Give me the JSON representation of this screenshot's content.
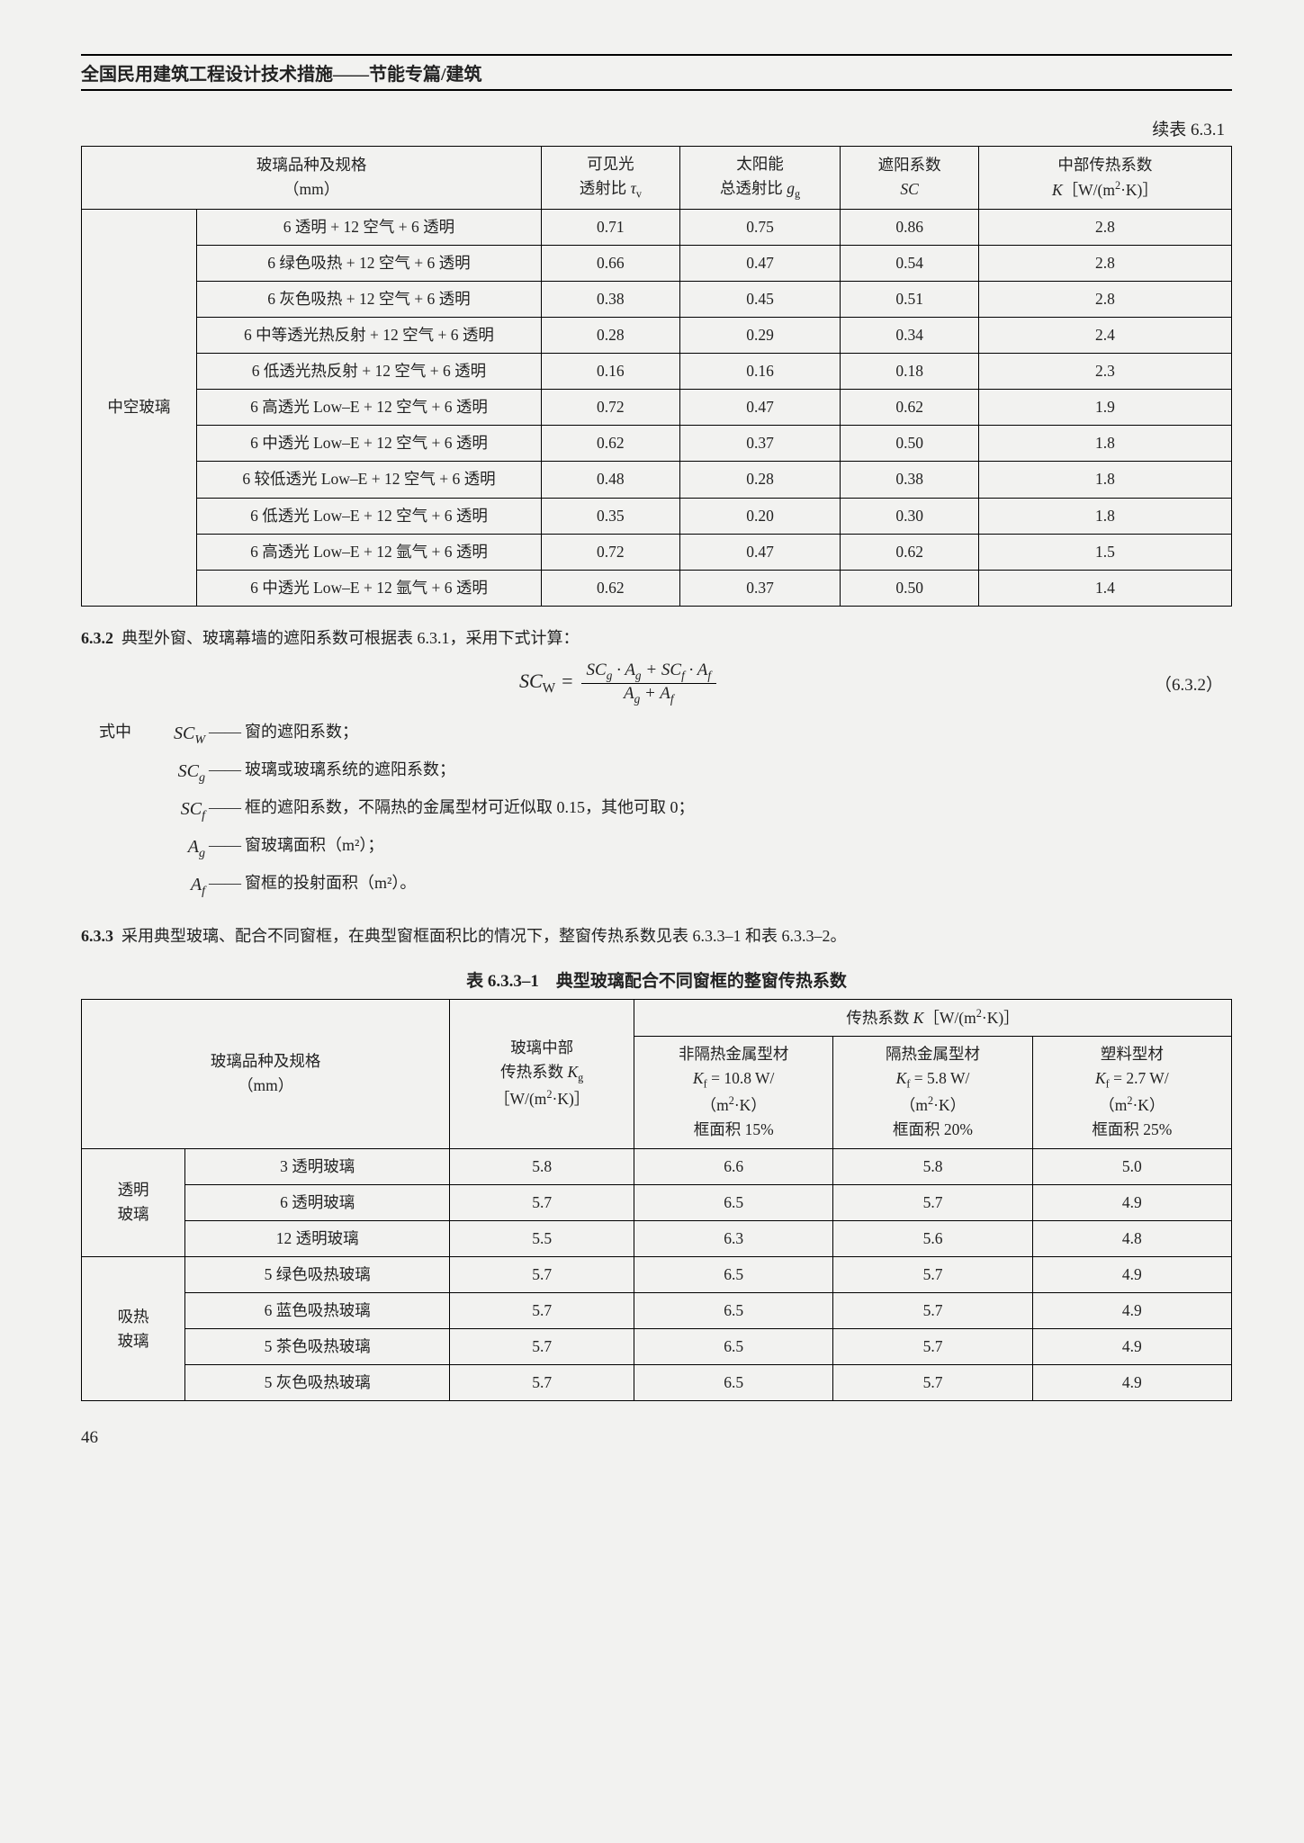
{
  "header": "全国民用建筑工程设计技术措施——节能专篇/建筑",
  "table1": {
    "caption": "续表 6.3.1",
    "head": {
      "spec": "玻璃品种及规格\n（mm）",
      "vis": "可见光\n透射比 τᵥ",
      "solar": "太阳能\n总透射比 gₛ",
      "sc": "遮阳系数\nSC",
      "k": "中部传热系数\nK［W/(m²·K)］"
    },
    "group_label": "中空玻璃",
    "rows": [
      [
        "6 透明 + 12 空气 + 6 透明",
        "0.71",
        "0.75",
        "0.86",
        "2.8"
      ],
      [
        "6 绿色吸热 + 12 空气 + 6 透明",
        "0.66",
        "0.47",
        "0.54",
        "2.8"
      ],
      [
        "6 灰色吸热 + 12 空气 + 6 透明",
        "0.38",
        "0.45",
        "0.51",
        "2.8"
      ],
      [
        "6 中等透光热反射 + 12 空气 + 6 透明",
        "0.28",
        "0.29",
        "0.34",
        "2.4"
      ],
      [
        "6 低透光热反射 + 12 空气 + 6 透明",
        "0.16",
        "0.16",
        "0.18",
        "2.3"
      ],
      [
        "6 高透光 Low–E + 12 空气 + 6 透明",
        "0.72",
        "0.47",
        "0.62",
        "1.9"
      ],
      [
        "6 中透光 Low–E + 12 空气 + 6 透明",
        "0.62",
        "0.37",
        "0.50",
        "1.8"
      ],
      [
        "6 较低透光 Low–E + 12 空气 + 6 透明",
        "0.48",
        "0.28",
        "0.38",
        "1.8"
      ],
      [
        "6 低透光 Low–E + 12 空气 + 6 透明",
        "0.35",
        "0.20",
        "0.30",
        "1.8"
      ],
      [
        "6 高透光 Low–E + 12 氩气 + 6 透明",
        "0.72",
        "0.47",
        "0.62",
        "1.5"
      ],
      [
        "6 中透光 Low–E + 12 氩气 + 6 透明",
        "0.62",
        "0.37",
        "0.50",
        "1.4"
      ]
    ]
  },
  "p632": {
    "num": "6.3.2",
    "text": "典型外窗、玻璃幕墙的遮阳系数可根据表 6.3.1，采用下式计算：",
    "eq_num": "（6.3.2）",
    "lhs": "SC_W",
    "frac_num": "SC_g · A_g + SC_f · A_f",
    "frac_den": "A_g + A_f",
    "defs_label": "式中",
    "defs": [
      {
        "sym": "SC_W",
        "txt": "窗的遮阳系数；"
      },
      {
        "sym": "SC_g",
        "txt": "玻璃或玻璃系统的遮阳系数；"
      },
      {
        "sym": "SC_f",
        "txt": "框的遮阳系数，不隔热的金属型材可近似取 0.15，其他可取 0；"
      },
      {
        "sym": "A_g",
        "txt": "窗玻璃面积（m²）；"
      },
      {
        "sym": "A_f",
        "txt": "窗框的投射面积（m²）。"
      }
    ]
  },
  "p633": {
    "num": "6.3.3",
    "text": "采用典型玻璃、配合不同窗框，在典型窗框面积比的情况下，整窗传热系数见表 6.3.3–1 和表 6.3.3–2。"
  },
  "table2": {
    "caption": "表 6.3.3–1　典型玻璃配合不同窗框的整窗传热系数",
    "head": {
      "spec": "玻璃品种及规格\n（mm）",
      "kg": "玻璃中部\n传热系数 K_g\n［W/(m²·K)］",
      "ktitle": "传热系数 K［W/(m²·K)］",
      "c1": {
        "l1": "非隔热金属型材",
        "l2": "K_f = 10.8 W/",
        "l3": "（m²·K）",
        "l4": "框面积 15%"
      },
      "c2": {
        "l1": "隔热金属型材",
        "l2": "K_f = 5.8 W/",
        "l3": "（m²·K）",
        "l4": "框面积 20%"
      },
      "c3": {
        "l1": "塑料型材",
        "l2": "K_f = 2.7 W/",
        "l3": "（m²·K）",
        "l4": "框面积 25%"
      }
    },
    "groups": [
      {
        "label": "透明\n玻璃",
        "rows": [
          [
            "3 透明玻璃",
            "5.8",
            "6.6",
            "5.8",
            "5.0"
          ],
          [
            "6 透明玻璃",
            "5.7",
            "6.5",
            "5.7",
            "4.9"
          ],
          [
            "12 透明玻璃",
            "5.5",
            "6.3",
            "5.6",
            "4.8"
          ]
        ]
      },
      {
        "label": "吸热\n玻璃",
        "rows": [
          [
            "5 绿色吸热玻璃",
            "5.7",
            "6.5",
            "5.7",
            "4.9"
          ],
          [
            "6 蓝色吸热玻璃",
            "5.7",
            "6.5",
            "5.7",
            "4.9"
          ],
          [
            "5 茶色吸热玻璃",
            "5.7",
            "6.5",
            "5.7",
            "4.9"
          ],
          [
            "5 灰色吸热玻璃",
            "5.7",
            "6.5",
            "5.7",
            "4.9"
          ]
        ]
      }
    ]
  },
  "page_number": "46"
}
